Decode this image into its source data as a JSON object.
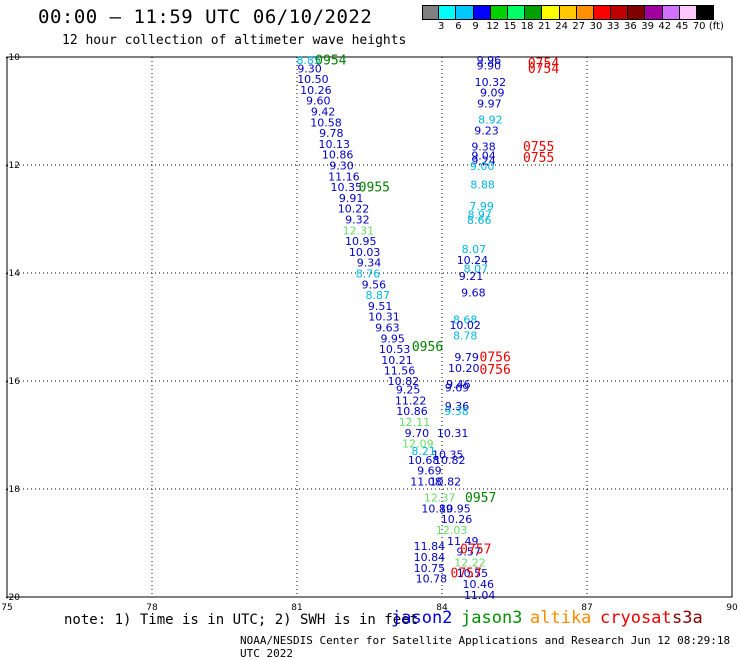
{
  "header": {
    "title": "00:00 — 11:59 UTC 06/10/2022",
    "subtitle": "12 hour collection of altimeter wave heights"
  },
  "colorbar": {
    "colors": [
      "#808080",
      "#00ffff",
      "#00c8ff",
      "#0000ff",
      "#00d000",
      "#00ff66",
      "#00a000",
      "#ffff00",
      "#ffc800",
      "#ff9000",
      "#ff0000",
      "#c00000",
      "#800000",
      "#a000a0",
      "#d070ff",
      "#ffc8ff",
      "#000000"
    ],
    "tick_labels": [
      "3",
      "6",
      "9",
      "12",
      "15",
      "18",
      "21",
      "24",
      "27",
      "30",
      "33",
      "36",
      "39",
      "42",
      "45",
      "70",
      "(ft)"
    ]
  },
  "note": "note:  1) Time is in UTC;  2) SWH is in feet",
  "missions": {
    "jason2": {
      "label": "jason2",
      "color": "#0000e0"
    },
    "jason3": {
      "label": "jason3",
      "color": "#009000"
    },
    "altika": {
      "label": "altika",
      "color": "#ff8c00"
    },
    "cryosat": {
      "label": "cryosat",
      "color": "#ee0000"
    },
    "s3a": {
      "label": "s3a",
      "color": "#8b0000"
    }
  },
  "footer": "NOAA/NESDIS Center for Satellite Applications and Research    Jun 12 08:29:18 UTC 2022",
  "chart_data": {
    "type": "scatter",
    "xlim": [
      75,
      90
    ],
    "ylim": [
      -20,
      -10
    ],
    "x_ticks": [
      75,
      78,
      81,
      84,
      87,
      90
    ],
    "y_ticks": [
      -10,
      -12,
      -14,
      -16,
      -18,
      -20
    ],
    "grid": true,
    "value_colors": {
      "blue": "#0000c8",
      "cyan": "#00b8e0",
      "lgreen": "#66dd66"
    },
    "time_labels": [
      {
        "text": "0954",
        "x": 81.7,
        "y": -10.05,
        "color": "#008000"
      },
      {
        "text": "0955",
        "x": 82.6,
        "y": -12.4,
        "color": "#008000"
      },
      {
        "text": "0956",
        "x": 83.7,
        "y": -15.35,
        "color": "#008000"
      },
      {
        "text": "0957",
        "x": 84.8,
        "y": -18.15,
        "color": "#008000"
      },
      {
        "text": "0754",
        "x": 86.1,
        "y": -10.1,
        "color": "#ee0000"
      },
      {
        "text": "0754",
        "x": 86.1,
        "y": -10.2,
        "color": "#ee0000"
      },
      {
        "text": "0755",
        "x": 86.0,
        "y": -11.65,
        "color": "#ee0000"
      },
      {
        "text": "0755",
        "x": 86.0,
        "y": -11.85,
        "color": "#ee0000"
      },
      {
        "text": "0756",
        "x": 85.1,
        "y": -15.55,
        "color": "#ee0000"
      },
      {
        "text": "0756",
        "x": 85.1,
        "y": -15.78,
        "color": "#ee0000"
      },
      {
        "text": "0757",
        "x": 84.7,
        "y": -19.1,
        "color": "#ee0000"
      },
      {
        "text": "0757",
        "x": 84.5,
        "y": -19.55,
        "color": "#ee0000"
      }
    ],
    "points": [
      {
        "v": "8.85",
        "x": 81.24,
        "y": -10.06,
        "c": "cyan"
      },
      {
        "v": "9.30",
        "x": 81.26,
        "y": -10.21,
        "c": "blue"
      },
      {
        "v": "10.50",
        "x": 81.33,
        "y": -10.41,
        "c": "blue"
      },
      {
        "v": "10.26",
        "x": 81.39,
        "y": -10.61,
        "c": "blue"
      },
      {
        "v": "9.60",
        "x": 81.44,
        "y": -10.81,
        "c": "blue"
      },
      {
        "v": "9.42",
        "x": 81.54,
        "y": -11.01,
        "c": "blue"
      },
      {
        "v": "10.58",
        "x": 81.6,
        "y": -11.21,
        "c": "blue"
      },
      {
        "v": "9.78",
        "x": 81.71,
        "y": -11.41,
        "c": "blue"
      },
      {
        "v": "10.13",
        "x": 81.77,
        "y": -11.61,
        "c": "blue"
      },
      {
        "v": "10.86",
        "x": 81.84,
        "y": -11.81,
        "c": "blue"
      },
      {
        "v": "9.30",
        "x": 81.92,
        "y": -12.01,
        "c": "blue"
      },
      {
        "v": "11.16",
        "x": 81.97,
        "y": -12.21,
        "c": "blue"
      },
      {
        "v": "10.35",
        "x": 82.02,
        "y": -12.41,
        "c": "blue"
      },
      {
        "v": "9.91",
        "x": 82.12,
        "y": -12.61,
        "c": "blue"
      },
      {
        "v": "10.22",
        "x": 82.17,
        "y": -12.81,
        "c": "blue"
      },
      {
        "v": "9.32",
        "x": 82.25,
        "y": -13.01,
        "c": "blue"
      },
      {
        "v": "12.31",
        "x": 82.27,
        "y": -13.21,
        "c": "lgreen"
      },
      {
        "v": "10.95",
        "x": 82.32,
        "y": -13.41,
        "c": "blue"
      },
      {
        "v": "10.03",
        "x": 82.4,
        "y": -13.61,
        "c": "blue"
      },
      {
        "v": "9.34",
        "x": 82.49,
        "y": -13.81,
        "c": "blue"
      },
      {
        "v": "8.76",
        "x": 82.47,
        "y": -14.01,
        "c": "cyan"
      },
      {
        "v": "9.56",
        "x": 82.59,
        "y": -14.21,
        "c": "blue"
      },
      {
        "v": "8.87",
        "x": 82.67,
        "y": -14.41,
        "c": "cyan"
      },
      {
        "v": "9.51",
        "x": 82.72,
        "y": -14.61,
        "c": "blue"
      },
      {
        "v": "10.31",
        "x": 82.8,
        "y": -14.81,
        "c": "blue"
      },
      {
        "v": "9.63",
        "x": 82.87,
        "y": -15.01,
        "c": "blue"
      },
      {
        "v": "9.95",
        "x": 82.98,
        "y": -15.21,
        "c": "blue"
      },
      {
        "v": "10.53",
        "x": 83.02,
        "y": -15.41,
        "c": "blue"
      },
      {
        "v": "10.21",
        "x": 83.07,
        "y": -15.61,
        "c": "blue"
      },
      {
        "v": "11.56",
        "x": 83.12,
        "y": -15.81,
        "c": "blue"
      },
      {
        "v": "10.82",
        "x": 83.2,
        "y": -16.0,
        "c": "blue"
      },
      {
        "v": "9.25",
        "x": 83.3,
        "y": -16.16,
        "c": "blue"
      },
      {
        "v": "11.22",
        "x": 83.35,
        "y": -16.36,
        "c": "blue"
      },
      {
        "v": "10.86",
        "x": 83.38,
        "y": -16.56,
        "c": "blue"
      },
      {
        "v": "12.11",
        "x": 83.43,
        "y": -16.76,
        "c": "lgreen"
      },
      {
        "v": "9.70",
        "x": 83.48,
        "y": -16.96,
        "c": "blue"
      },
      {
        "v": "12.09",
        "x": 83.5,
        "y": -17.16,
        "c": "lgreen"
      },
      {
        "v": "8.21",
        "x": 83.62,
        "y": -17.3,
        "c": "cyan"
      },
      {
        "v": "10.68",
        "x": 83.62,
        "y": -17.46,
        "c": "blue"
      },
      {
        "v": "9.69",
        "x": 83.74,
        "y": -17.66,
        "c": "blue"
      },
      {
        "v": "11.08",
        "x": 83.67,
        "y": -17.86,
        "c": "blue"
      },
      {
        "v": "12.37",
        "x": 83.95,
        "y": -18.16,
        "c": "lgreen"
      },
      {
        "v": "10.89",
        "x": 83.9,
        "y": -18.36,
        "c": "blue"
      },
      {
        "v": "12.03",
        "x": 84.2,
        "y": -18.76,
        "c": "lgreen"
      },
      {
        "v": "11.84",
        "x": 83.74,
        "y": -19.06,
        "c": "blue"
      },
      {
        "v": "10.84",
        "x": 83.74,
        "y": -19.26,
        "c": "blue"
      },
      {
        "v": "10.75",
        "x": 83.74,
        "y": -19.46,
        "c": "blue"
      },
      {
        "v": "10.78",
        "x": 83.78,
        "y": -19.66,
        "c": "blue"
      },
      {
        "v": "9.96",
        "x": 84.97,
        "y": -10.06,
        "c": "blue"
      },
      {
        "v": "9.90",
        "x": 84.97,
        "y": -10.16,
        "c": "blue"
      },
      {
        "v": "10.32",
        "x": 85.0,
        "y": -10.46,
        "c": "blue"
      },
      {
        "v": "9.09",
        "x": 85.04,
        "y": -10.66,
        "c": "blue"
      },
      {
        "v": "9.97",
        "x": 84.98,
        "y": -10.86,
        "c": "blue"
      },
      {
        "v": "8.92",
        "x": 85.0,
        "y": -11.16,
        "c": "cyan"
      },
      {
        "v": "9.23",
        "x": 84.92,
        "y": -11.36,
        "c": "blue"
      },
      {
        "v": "9.38",
        "x": 84.86,
        "y": -11.66,
        "c": "blue"
      },
      {
        "v": "9.04",
        "x": 84.86,
        "y": -11.82,
        "c": "blue"
      },
      {
        "v": "9.24",
        "x": 84.86,
        "y": -11.92,
        "c": "blue"
      },
      {
        "v": "9.00",
        "x": 84.83,
        "y": -12.02,
        "c": "cyan"
      },
      {
        "v": "8.88",
        "x": 84.84,
        "y": -12.36,
        "c": "cyan"
      },
      {
        "v": "7.99",
        "x": 84.82,
        "y": -12.76,
        "c": "cyan"
      },
      {
        "v": "8.97",
        "x": 84.78,
        "y": -12.92,
        "c": "cyan"
      },
      {
        "v": "8.66",
        "x": 84.77,
        "y": -13.02,
        "c": "cyan"
      },
      {
        "v": "8.07",
        "x": 84.66,
        "y": -13.56,
        "c": "cyan"
      },
      {
        "v": "10.24",
        "x": 84.63,
        "y": -13.76,
        "c": "blue"
      },
      {
        "v": "8.07",
        "x": 84.7,
        "y": -13.92,
        "c": "cyan"
      },
      {
        "v": "9.21",
        "x": 84.6,
        "y": -14.06,
        "c": "blue"
      },
      {
        "v": "9.68",
        "x": 84.65,
        "y": -14.36,
        "c": "blue"
      },
      {
        "v": "8.68",
        "x": 84.48,
        "y": -14.86,
        "c": "cyan"
      },
      {
        "v": "10.02",
        "x": 84.48,
        "y": -14.96,
        "c": "blue"
      },
      {
        "v": "8.78",
        "x": 84.48,
        "y": -15.16,
        "c": "cyan"
      },
      {
        "v": "9.79",
        "x": 84.51,
        "y": -15.56,
        "c": "blue"
      },
      {
        "v": "10.20",
        "x": 84.45,
        "y": -15.76,
        "c": "blue"
      },
      {
        "v": "9.46",
        "x": 84.34,
        "y": -16.06,
        "c": "blue"
      },
      {
        "v": "9.69",
        "x": 84.31,
        "y": -16.12,
        "c": "blue"
      },
      {
        "v": "9.36",
        "x": 84.31,
        "y": -16.46,
        "c": "blue"
      },
      {
        "v": "9.38",
        "x": 84.3,
        "y": -16.56,
        "c": "cyan"
      },
      {
        "v": "10.31",
        "x": 84.22,
        "y": -16.96,
        "c": "blue"
      },
      {
        "v": "10.35",
        "x": 84.12,
        "y": -17.36,
        "c": "blue"
      },
      {
        "v": "10.82",
        "x": 84.16,
        "y": -17.46,
        "c": "blue"
      },
      {
        "v": "10.82",
        "x": 84.07,
        "y": -17.86,
        "c": "blue"
      },
      {
        "v": "10.95",
        "x": 84.27,
        "y": -18.36,
        "c": "blue"
      },
      {
        "v": "10.26",
        "x": 84.3,
        "y": -18.56,
        "c": "blue"
      },
      {
        "v": "11.49",
        "x": 84.43,
        "y": -18.96,
        "c": "blue"
      },
      {
        "v": "9.57",
        "x": 84.55,
        "y": -19.16,
        "c": "blue"
      },
      {
        "v": "12.22",
        "x": 84.58,
        "y": -19.36,
        "c": "lgreen"
      },
      {
        "v": "10.55",
        "x": 84.63,
        "y": -19.56,
        "c": "blue"
      },
      {
        "v": "10.46",
        "x": 84.75,
        "y": -19.76,
        "c": "blue"
      },
      {
        "v": "11.04",
        "x": 84.78,
        "y": -19.96,
        "c": "blue"
      }
    ]
  }
}
